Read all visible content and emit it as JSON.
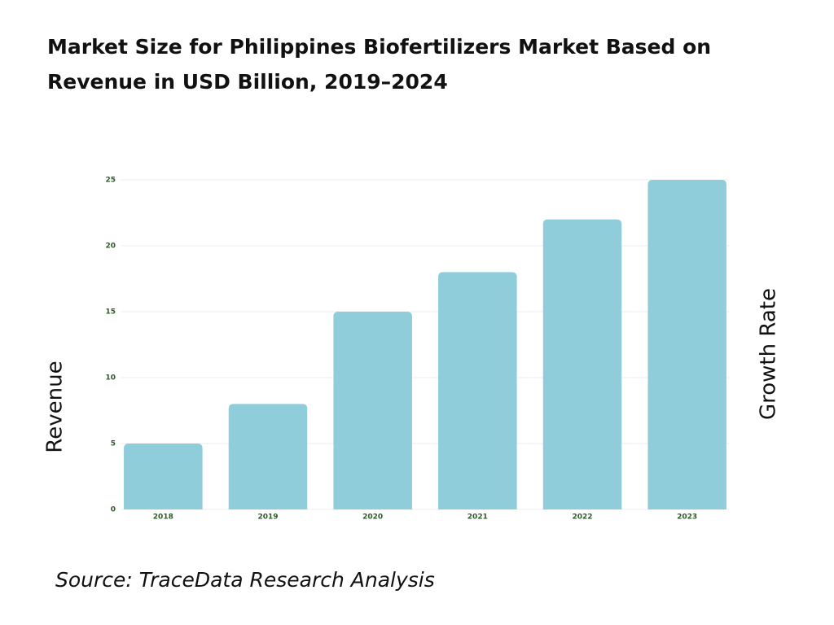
{
  "chart_data": {
    "type": "bar",
    "title": "Market Size for Philippines Biofertilizers Market Based on Revenue in USD Billion, 2019–2024",
    "ylabel": "Revenue",
    "y2label": "Growth Rate",
    "source": "Source: TraceData Research Analysis",
    "categories": [
      "2018",
      "2019",
      "2020",
      "2021",
      "2022",
      "2023"
    ],
    "values": [
      5,
      8,
      15,
      18,
      22,
      25
    ],
    "color": "#8ecdd9",
    "ylim": [
      0,
      25
    ],
    "yticks": [
      0,
      5,
      10,
      15,
      20,
      25
    ],
    "grid": true
  }
}
